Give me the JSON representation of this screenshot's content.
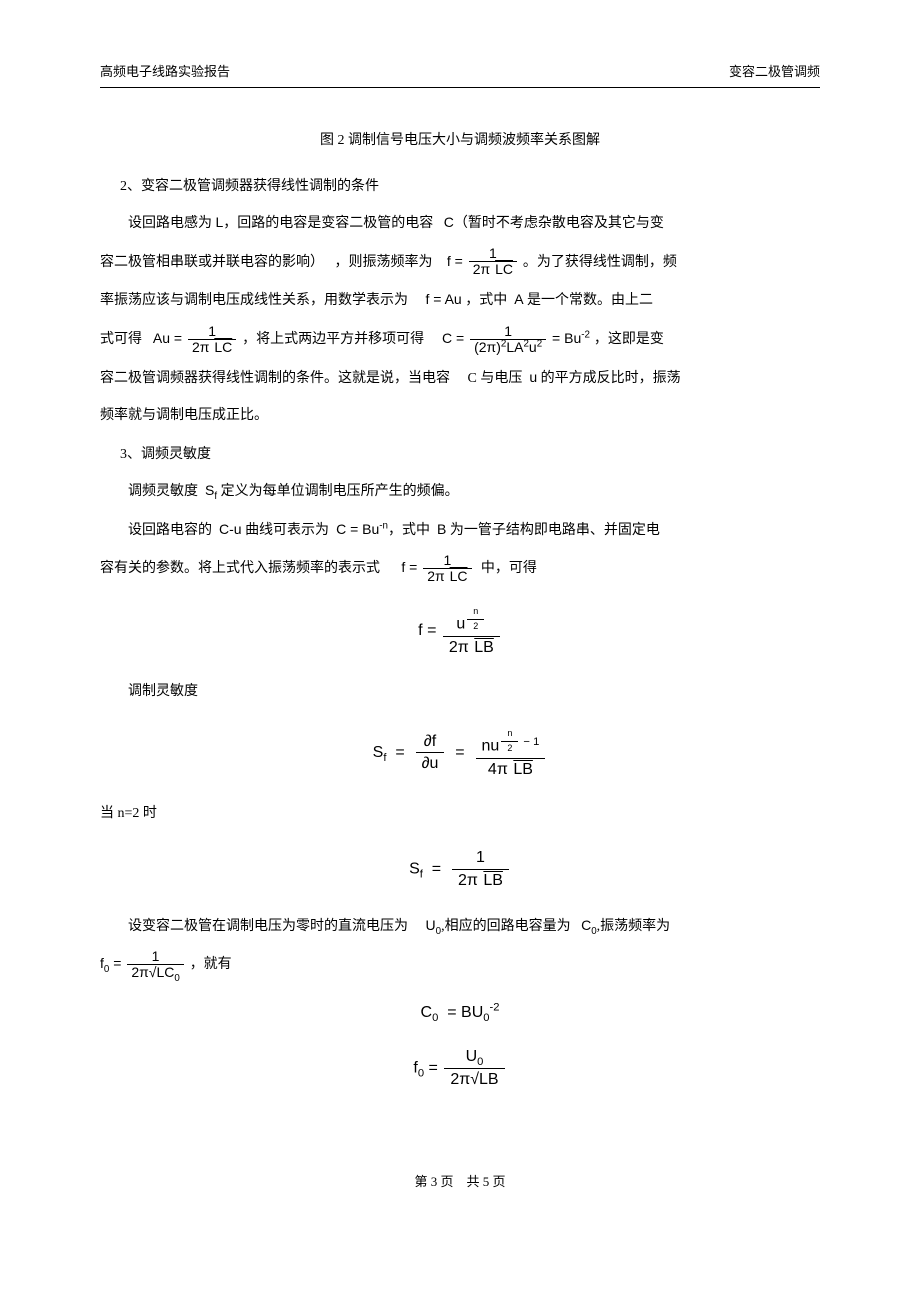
{
  "header": {
    "left": "高频电子线路实验报告",
    "right": "变容二极管调频"
  },
  "caption": "图 2 调制信号电压大小与调频波频率关系图解",
  "sec2": {
    "title": "2、变容二极管调频器获得线性调制的条件",
    "t1a": "设回路电感为",
    "L": "L",
    "t1b": "，回路的电容是变容二极管的电容",
    "C": "C",
    "t1c": "（暂时不考虑杂散电容及其它与变",
    "t2a": "容二极管相串联或并联电容的影响）",
    "t2b": "，则振荡频率为",
    "eq_f_label": "f =",
    "frac_1": "1",
    "den_2piLC": "2π √LC",
    "t2c": "。为了获得线性调制，频",
    "t3a": "率振荡应该与调制电压成线性关系，用数学表示为",
    "eq_Au": "f = Au",
    "t3b": "，式中",
    "A": "A",
    "t3c": "是一个常数。由上二",
    "t4a": "式可得",
    "Au_eq": "Au =",
    "t4b": "，将上式两边平方并移项可得",
    "C_eq": "C =",
    "den_2pi2LA2u2_pre": "(2π)",
    "den_2pi2LA2u2_mid": "LA",
    "den_2pi2LA2u2_post": "u",
    "Bu_neg2": "= Bu",
    "neg2": "-2",
    "t4c": "，这即是变",
    "t5a": "容二极管调频器获得线性调制的条件。这就是说，当电容",
    "t5b": "C 与电压",
    "u": "u",
    "t5c": "的平方成反比时，振荡",
    "t6": "频率就与调制电压成正比。"
  },
  "sec3": {
    "title": "3、调频灵敏度",
    "t1a": "调频灵敏度",
    "Sf": "S",
    "sub_f": "f",
    "t1b": "定义为每单位调制电压所产生的频偏。",
    "t2a": "设回路电容的",
    "Cu": "C-u",
    "t2b": "曲线可表示为",
    "C_Bun": "C = Bu",
    "neg_n": "-n",
    "t2c": "，式中",
    "B": "B",
    "t2d": "为一管子结构即电路串、并固定电",
    "t3a": "容有关的参数。将上式代入振荡频率的表示式",
    "t3b": "中，可得",
    "formula_f_un2_num_base": "u",
    "formula_f_un2_exp_num": "n",
    "formula_f_un2_exp_den": "2",
    "den_2piLB": "2π √LB",
    "t_mod_sens": "调制灵敏度",
    "partial_f": "∂f",
    "partial_u": "∂u",
    "nu_base": "nu",
    "minus1": " − 1",
    "den_4piLB_pre": "4π",
    "t_when_n2": "当 n=2 时",
    "t4a": "设变容二极管在调制电压为零时的直流电压为",
    "U0": "U",
    "sub_0": "0",
    "t4b": "相应的回路电容量为",
    "C0": "C",
    "t4c": "振荡频率为",
    "f0_eq": "f",
    "t5": "，就有",
    "den_2piLC0_pre": "2π√LC",
    "C0_eq": "C",
    "BU0": "= BU",
    "formula_f0_label": "f",
    "den_2piLB2": "2π√LB"
  },
  "footer": {
    "page": "第 3 页　共 5 页"
  }
}
